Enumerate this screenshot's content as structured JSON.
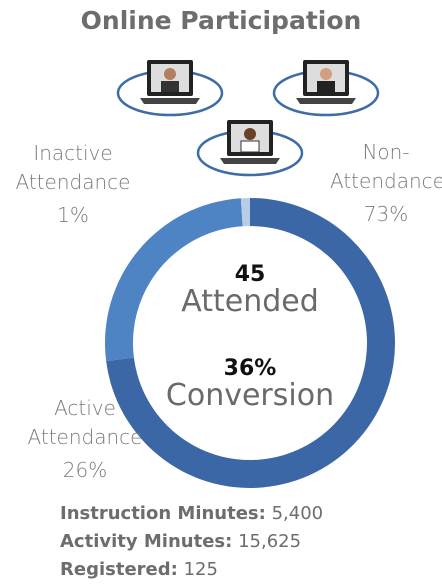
{
  "chart_data": {
    "type": "pie",
    "title": "Online Participation",
    "categories": [
      "Non-Attendance",
      "Active Attendance",
      "Inactive Attendance"
    ],
    "values": [
      73,
      26,
      1
    ],
    "value_labels": [
      "73%",
      "26%",
      "1%"
    ],
    "colors": [
      "#3b67a6",
      "#4f84c4",
      "#b9cde8"
    ],
    "center": [
      {
        "value": "45",
        "label": "Attended"
      },
      {
        "value": "36%",
        "label": "Conversion"
      }
    ],
    "stats": [
      {
        "label": "Instruction Minutes:",
        "value": "5,400"
      },
      {
        "label": "Activity Minutes:",
        "value": "15,625"
      },
      {
        "label": "Registered:",
        "value": "125"
      }
    ]
  }
}
